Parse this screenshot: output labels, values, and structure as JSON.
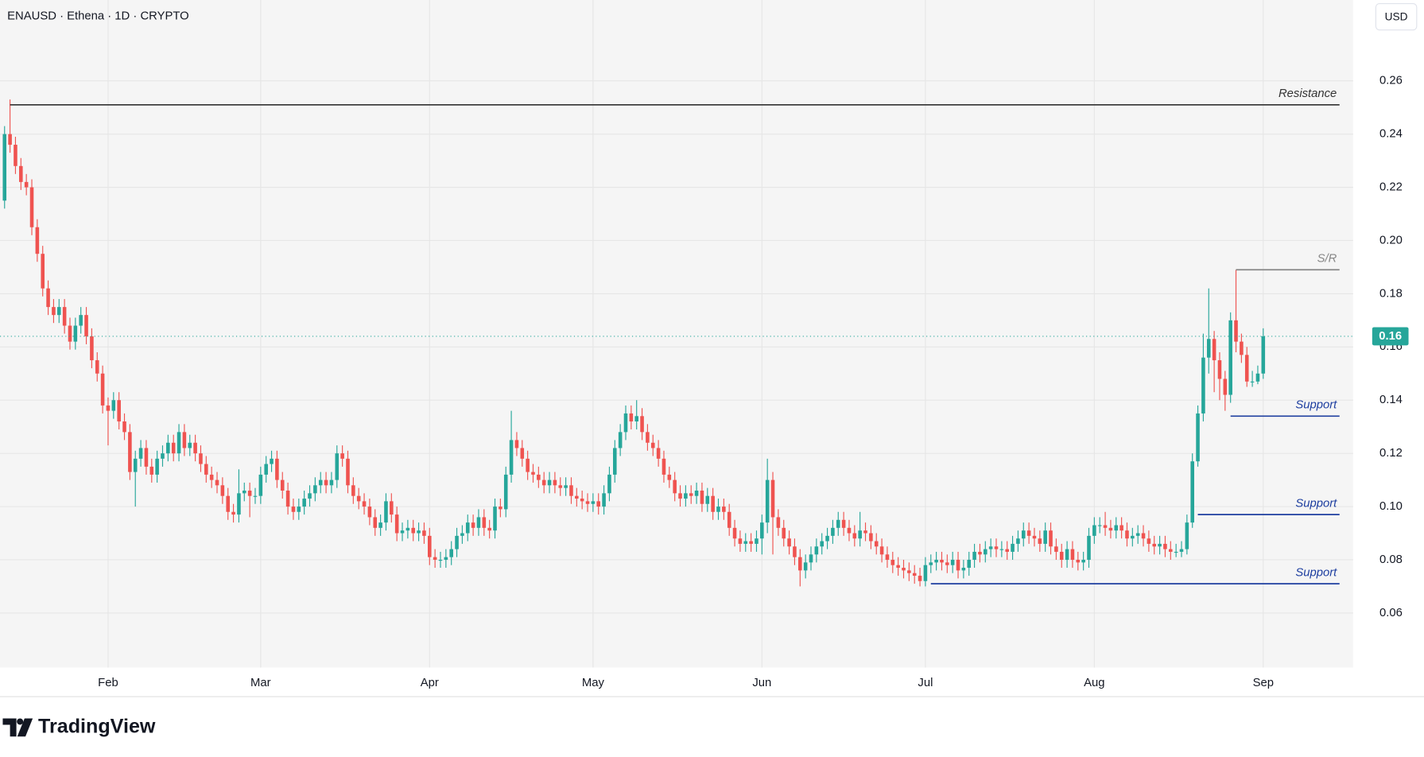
{
  "chart_data": {
    "type": "candlestick",
    "title": "ENAUSD · Ethena · 1D · CRYPTO",
    "currency_button": "USD",
    "branding": "TradingView",
    "up_color": "#26a69a",
    "down_color": "#ef5350",
    "grid": true,
    "ylim": [
      0.0395,
      0.2904
    ],
    "yticks": [
      0.06,
      0.08,
      {
        "value": 0.1,
        "label": "0.10"
      },
      0.12,
      0.14,
      0.16,
      0.18,
      {
        "value": 0.2,
        "label": "0.20"
      },
      0.22,
      0.24,
      0.26
    ],
    "categories": [
      null,
      null,
      null,
      null,
      null,
      null,
      null,
      null,
      null,
      null,
      null,
      null,
      null,
      null,
      null,
      null,
      null,
      null,
      null,
      "Feb",
      null,
      null,
      null,
      null,
      null,
      null,
      null,
      null,
      null,
      null,
      null,
      null,
      null,
      null,
      null,
      null,
      null,
      null,
      null,
      null,
      null,
      null,
      null,
      null,
      null,
      null,
      null,
      "Mar",
      null,
      null,
      null,
      null,
      null,
      null,
      null,
      null,
      null,
      null,
      null,
      null,
      null,
      null,
      null,
      null,
      null,
      null,
      null,
      null,
      null,
      null,
      null,
      null,
      null,
      null,
      null,
      null,
      null,
      null,
      "Apr",
      null,
      null,
      null,
      null,
      null,
      null,
      null,
      null,
      null,
      null,
      null,
      null,
      null,
      null,
      null,
      null,
      null,
      null,
      null,
      null,
      null,
      null,
      null,
      null,
      null,
      null,
      null,
      null,
      null,
      "May",
      null,
      null,
      null,
      null,
      null,
      null,
      null,
      null,
      null,
      null,
      null,
      null,
      null,
      null,
      null,
      null,
      null,
      null,
      null,
      null,
      null,
      null,
      null,
      null,
      null,
      null,
      null,
      null,
      null,
      null,
      "Jun",
      null,
      null,
      null,
      null,
      null,
      null,
      null,
      null,
      null,
      null,
      null,
      null,
      null,
      null,
      null,
      null,
      null,
      null,
      null,
      null,
      null,
      null,
      null,
      null,
      null,
      null,
      null,
      null,
      null,
      "Jul",
      null,
      null,
      null,
      null,
      null,
      null,
      null,
      null,
      null,
      null,
      null,
      null,
      null,
      null,
      null,
      null,
      null,
      null,
      null,
      null,
      null,
      null,
      null,
      null,
      null,
      null,
      null,
      null,
      null,
      null,
      "Aug",
      null,
      null,
      null,
      null,
      null,
      null,
      null,
      null,
      null,
      null,
      null,
      null,
      null,
      null,
      null,
      null,
      null,
      null,
      null,
      null,
      null,
      null,
      null,
      null,
      null,
      null,
      null,
      null,
      null,
      null,
      "Sep"
    ],
    "open": [
      0.215,
      0.24,
      0.236,
      0.228,
      0.222,
      0.22,
      0.205,
      0.195,
      0.182,
      0.175,
      0.172,
      0.175,
      0.168,
      0.162,
      0.168,
      0.172,
      0.164,
      0.155,
      0.15,
      0.138,
      0.136,
      0.14,
      0.132,
      0.128,
      0.113,
      0.118,
      0.122,
      0.115,
      0.112,
      0.118,
      0.12,
      0.124,
      0.12,
      0.128,
      0.122,
      0.124,
      0.12,
      0.116,
      0.112,
      0.11,
      0.108,
      0.104,
      0.098,
      0.097,
      0.105,
      0.106,
      0.104,
      0.104,
      0.112,
      0.116,
      0.118,
      0.11,
      0.106,
      0.1,
      0.098,
      0.1,
      0.103,
      0.105,
      0.108,
      0.11,
      0.108,
      0.11,
      0.12,
      0.118,
      0.108,
      0.104,
      0.102,
      0.1,
      0.096,
      0.092,
      0.094,
      0.102,
      0.097,
      0.09,
      0.091,
      0.092,
      0.09,
      0.091,
      0.089,
      0.081,
      0.08,
      0.08,
      0.081,
      0.084,
      0.089,
      0.09,
      0.094,
      0.092,
      0.096,
      0.092,
      0.091,
      0.1,
      0.099,
      0.112,
      0.125,
      0.122,
      0.118,
      0.113,
      0.112,
      0.11,
      0.108,
      0.11,
      0.108,
      0.107,
      0.108,
      0.104,
      0.103,
      0.102,
      0.101,
      0.102,
      0.1,
      0.105,
      0.112,
      0.122,
      0.128,
      0.135,
      0.132,
      0.134,
      0.128,
      0.124,
      0.122,
      0.118,
      0.112,
      0.11,
      0.105,
      0.103,
      0.105,
      0.104,
      0.106,
      0.101,
      0.104,
      0.098,
      0.1,
      0.098,
      0.092,
      0.088,
      0.086,
      0.087,
      0.086,
      0.088,
      0.094,
      0.11,
      0.096,
      0.092,
      0.088,
      0.085,
      0.081,
      0.076,
      0.079,
      0.082,
      0.085,
      0.087,
      0.089,
      0.092,
      0.095,
      0.092,
      0.09,
      0.088,
      0.091,
      0.09,
      0.087,
      0.085,
      0.082,
      0.08,
      0.078,
      0.077,
      0.076,
      0.075,
      0.074,
      0.072,
      0.078,
      0.079,
      0.08,
      0.079,
      0.078,
      0.08,
      0.076,
      0.077,
      0.08,
      0.083,
      0.082,
      0.084,
      0.085,
      0.084,
      0.084,
      0.083,
      0.086,
      0.088,
      0.091,
      0.089,
      0.088,
      0.086,
      0.091,
      0.085,
      0.083,
      0.08,
      0.084,
      0.08,
      0.079,
      0.08,
      0.089,
      0.093,
      0.093,
      0.092,
      0.091,
      0.093,
      0.091,
      0.088,
      0.089,
      0.09,
      0.088,
      0.086,
      0.085,
      0.086,
      0.084,
      0.083,
      0.083,
      0.084,
      0.094,
      0.117,
      0.135,
      0.156,
      0.163,
      0.155,
      0.148,
      0.142,
      0.17,
      0.162,
      0.157,
      0.147,
      0.147,
      0.15
    ],
    "high": [
      0.243,
      0.253,
      0.239,
      0.231,
      0.225,
      0.223,
      0.208,
      0.198,
      0.185,
      0.178,
      0.178,
      0.178,
      0.171,
      0.171,
      0.175,
      0.175,
      0.167,
      0.158,
      0.153,
      0.141,
      0.143,
      0.143,
      0.135,
      0.131,
      0.121,
      0.125,
      0.125,
      0.118,
      0.121,
      0.123,
      0.127,
      0.127,
      0.131,
      0.131,
      0.127,
      0.127,
      0.123,
      0.119,
      0.115,
      0.113,
      0.111,
      0.107,
      0.101,
      0.114,
      0.109,
      0.109,
      0.107,
      0.115,
      0.119,
      0.121,
      0.121,
      0.113,
      0.109,
      0.103,
      0.103,
      0.106,
      0.108,
      0.111,
      0.113,
      0.113,
      0.113,
      0.123,
      0.123,
      0.121,
      0.111,
      0.107,
      0.105,
      0.103,
      0.099,
      0.097,
      0.105,
      0.105,
      0.1,
      0.094,
      0.095,
      0.095,
      0.094,
      0.094,
      0.092,
      0.084,
      0.083,
      0.084,
      0.087,
      0.092,
      0.093,
      0.097,
      0.097,
      0.099,
      0.099,
      0.095,
      0.103,
      0.103,
      0.115,
      0.136,
      0.128,
      0.125,
      0.121,
      0.116,
      0.115,
      0.113,
      0.113,
      0.113,
      0.111,
      0.111,
      0.111,
      0.107,
      0.106,
      0.105,
      0.105,
      0.105,
      0.108,
      0.115,
      0.125,
      0.131,
      0.138,
      0.138,
      0.14,
      0.137,
      0.131,
      0.127,
      0.125,
      0.121,
      0.115,
      0.113,
      0.108,
      0.108,
      0.108,
      0.109,
      0.109,
      0.107,
      0.107,
      0.103,
      0.103,
      0.101,
      0.095,
      0.091,
      0.09,
      0.09,
      0.091,
      0.097,
      0.118,
      0.113,
      0.099,
      0.095,
      0.091,
      0.088,
      0.084,
      0.082,
      0.085,
      0.088,
      0.09,
      0.092,
      0.095,
      0.098,
      0.098,
      0.095,
      0.093,
      0.098,
      0.094,
      0.093,
      0.09,
      0.088,
      0.085,
      0.083,
      0.081,
      0.08,
      0.079,
      0.078,
      0.077,
      0.081,
      0.082,
      0.083,
      0.083,
      0.082,
      0.083,
      0.083,
      0.08,
      0.083,
      0.086,
      0.086,
      0.087,
      0.088,
      0.088,
      0.087,
      0.087,
      0.089,
      0.091,
      0.094,
      0.094,
      0.092,
      0.091,
      0.094,
      0.094,
      0.088,
      0.086,
      0.087,
      0.087,
      0.083,
      0.083,
      0.092,
      0.096,
      0.096,
      0.098,
      0.095,
      0.096,
      0.096,
      0.094,
      0.092,
      0.093,
      0.093,
      0.091,
      0.089,
      0.089,
      0.089,
      0.087,
      0.086,
      0.087,
      0.097,
      0.12,
      0.138,
      0.165,
      0.182,
      0.166,
      0.158,
      0.151,
      0.173,
      0.189,
      0.165,
      0.16,
      0.151,
      0.153,
      0.167
    ],
    "low": [
      0.212,
      0.233,
      0.225,
      0.219,
      0.217,
      0.202,
      0.192,
      0.179,
      0.172,
      0.169,
      0.169,
      0.165,
      0.159,
      0.159,
      0.165,
      0.161,
      0.152,
      0.147,
      0.135,
      0.123,
      0.133,
      0.129,
      0.125,
      0.11,
      0.1,
      0.115,
      0.112,
      0.109,
      0.109,
      0.115,
      0.117,
      0.117,
      0.117,
      0.119,
      0.119,
      0.117,
      0.113,
      0.109,
      0.107,
      0.105,
      0.101,
      0.095,
      0.094,
      0.094,
      0.102,
      0.096,
      0.101,
      0.101,
      0.109,
      0.113,
      0.107,
      0.103,
      0.097,
      0.095,
      0.095,
      0.097,
      0.1,
      0.102,
      0.105,
      0.105,
      0.105,
      0.107,
      0.115,
      0.105,
      0.101,
      0.099,
      0.097,
      0.093,
      0.089,
      0.089,
      0.091,
      0.094,
      0.087,
      0.087,
      0.088,
      0.087,
      0.087,
      0.086,
      0.078,
      0.077,
      0.077,
      0.077,
      0.078,
      0.081,
      0.086,
      0.087,
      0.089,
      0.089,
      0.089,
      0.088,
      0.088,
      0.096,
      0.096,
      0.109,
      0.119,
      0.115,
      0.11,
      0.109,
      0.107,
      0.105,
      0.105,
      0.105,
      0.104,
      0.104,
      0.101,
      0.1,
      0.099,
      0.098,
      0.098,
      0.097,
      0.097,
      0.102,
      0.109,
      0.119,
      0.125,
      0.129,
      0.129,
      0.125,
      0.121,
      0.119,
      0.115,
      0.109,
      0.107,
      0.102,
      0.1,
      0.1,
      0.101,
      0.101,
      0.098,
      0.098,
      0.095,
      0.095,
      0.095,
      0.089,
      0.085,
      0.083,
      0.083,
      0.083,
      0.083,
      0.082,
      0.09,
      0.082,
      0.089,
      0.085,
      0.082,
      0.078,
      0.07,
      0.073,
      0.076,
      0.079,
      0.082,
      0.084,
      0.086,
      0.089,
      0.089,
      0.087,
      0.085,
      0.085,
      0.087,
      0.084,
      0.082,
      0.079,
      0.077,
      0.075,
      0.074,
      0.073,
      0.072,
      0.071,
      0.07,
      0.07,
      0.075,
      0.076,
      0.076,
      0.075,
      0.075,
      0.073,
      0.073,
      0.074,
      0.077,
      0.079,
      0.079,
      0.081,
      0.081,
      0.081,
      0.08,
      0.08,
      0.083,
      0.085,
      0.086,
      0.085,
      0.083,
      0.083,
      0.082,
      0.08,
      0.077,
      0.077,
      0.077,
      0.076,
      0.076,
      0.077,
      0.086,
      0.09,
      0.089,
      0.088,
      0.088,
      0.088,
      0.085,
      0.085,
      0.086,
      0.085,
      0.083,
      0.082,
      0.082,
      0.081,
      0.08,
      0.081,
      0.081,
      0.082,
      0.092,
      0.115,
      0.132,
      0.15,
      0.143,
      0.14,
      0.136,
      0.139,
      0.158,
      0.154,
      0.145,
      0.145,
      0.146,
      0.148
    ],
    "close": [
      0.24,
      0.236,
      0.228,
      0.222,
      0.22,
      0.205,
      0.195,
      0.182,
      0.175,
      0.172,
      0.175,
      0.168,
      0.162,
      0.168,
      0.172,
      0.164,
      0.155,
      0.15,
      0.138,
      0.136,
      0.14,
      0.132,
      0.128,
      0.113,
      0.118,
      0.122,
      0.115,
      0.112,
      0.118,
      0.12,
      0.124,
      0.12,
      0.128,
      0.122,
      0.124,
      0.12,
      0.116,
      0.112,
      0.11,
      0.108,
      0.104,
      0.098,
      0.097,
      0.105,
      0.106,
      0.104,
      0.104,
      0.112,
      0.116,
      0.118,
      0.11,
      0.106,
      0.1,
      0.098,
      0.1,
      0.103,
      0.105,
      0.108,
      0.11,
      0.108,
      0.11,
      0.12,
      0.118,
      0.108,
      0.104,
      0.102,
      0.1,
      0.096,
      0.092,
      0.094,
      0.102,
      0.097,
      0.09,
      0.091,
      0.092,
      0.09,
      0.091,
      0.089,
      0.081,
      0.08,
      0.08,
      0.081,
      0.084,
      0.089,
      0.09,
      0.094,
      0.092,
      0.096,
      0.092,
      0.091,
      0.1,
      0.099,
      0.112,
      0.125,
      0.122,
      0.118,
      0.113,
      0.112,
      0.11,
      0.108,
      0.11,
      0.108,
      0.107,
      0.108,
      0.104,
      0.103,
      0.102,
      0.101,
      0.102,
      0.1,
      0.105,
      0.112,
      0.122,
      0.128,
      0.135,
      0.132,
      0.134,
      0.128,
      0.124,
      0.122,
      0.118,
      0.112,
      0.11,
      0.105,
      0.103,
      0.105,
      0.104,
      0.106,
      0.101,
      0.104,
      0.098,
      0.1,
      0.098,
      0.092,
      0.088,
      0.086,
      0.087,
      0.086,
      0.088,
      0.094,
      0.11,
      0.096,
      0.092,
      0.088,
      0.085,
      0.081,
      0.076,
      0.079,
      0.082,
      0.085,
      0.087,
      0.089,
      0.092,
      0.095,
      0.092,
      0.09,
      0.088,
      0.091,
      0.09,
      0.087,
      0.085,
      0.082,
      0.08,
      0.078,
      0.077,
      0.076,
      0.075,
      0.074,
      0.072,
      0.078,
      0.079,
      0.08,
      0.079,
      0.078,
      0.08,
      0.076,
      0.077,
      0.08,
      0.083,
      0.082,
      0.084,
      0.085,
      0.084,
      0.084,
      0.083,
      0.086,
      0.088,
      0.091,
      0.089,
      0.088,
      0.086,
      0.091,
      0.085,
      0.083,
      0.08,
      0.084,
      0.08,
      0.079,
      0.08,
      0.089,
      0.093,
      0.093,
      0.092,
      0.091,
      0.093,
      0.091,
      0.088,
      0.089,
      0.09,
      0.088,
      0.086,
      0.085,
      0.086,
      0.084,
      0.083,
      0.083,
      0.084,
      0.094,
      0.117,
      0.135,
      0.156,
      0.163,
      0.155,
      0.148,
      0.142,
      0.17,
      0.162,
      0.157,
      0.147,
      0.147,
      0.15,
      0.164
    ],
    "last_price": 0.164,
    "last_price_label": "0.16",
    "annotations": [
      {
        "label": "Resistance",
        "value": 0.251,
        "from": 1,
        "color": "#333333"
      },
      {
        "label": "S/R",
        "value": 0.189,
        "from": 226,
        "color": "#888888"
      },
      {
        "label": "Support",
        "value": 0.134,
        "from": 225,
        "color": "#1e3fa0"
      },
      {
        "label": "Support",
        "value": 0.097,
        "from": 219,
        "color": "#1e3fa0"
      },
      {
        "label": "Support",
        "value": 0.071,
        "from": 170,
        "color": "#1e3fa0"
      }
    ]
  }
}
